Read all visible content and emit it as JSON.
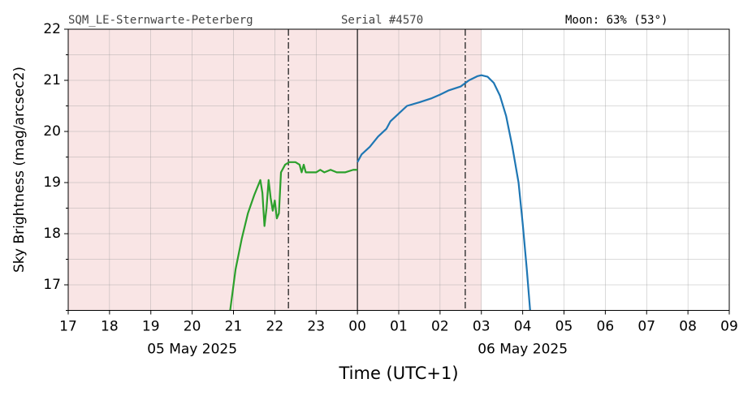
{
  "chart_data": {
    "type": "line",
    "header": {
      "site": "SQM_LE-Sternwarte-Peterberg",
      "serial": "Serial #4570",
      "moon": "Moon: 63% (53°)"
    },
    "ylabel": "Sky Brightness (mag/arcsec2)",
    "xlabel": "Time (UTC+1)",
    "xlim": [
      17,
      33
    ],
    "xticks": [
      17,
      18,
      19,
      20,
      21,
      22,
      23,
      {
        "value": 24,
        "label": "00"
      },
      {
        "value": 25,
        "label": "01"
      },
      {
        "value": 26,
        "label": "02"
      },
      {
        "value": 27,
        "label": "03"
      },
      {
        "value": 28,
        "label": "04"
      },
      {
        "value": 29,
        "label": "05"
      },
      {
        "value": 30,
        "label": "06"
      },
      {
        "value": 31,
        "label": "07"
      },
      {
        "value": 32,
        "label": "08"
      },
      {
        "value": 33,
        "label": "09"
      }
    ],
    "date_labels": [
      {
        "x": 20,
        "label": "05 May 2025"
      },
      {
        "x": 28,
        "label": "06 May 2025"
      }
    ],
    "ylim": [
      16.5,
      22
    ],
    "yticks": [
      17,
      18,
      19,
      20,
      21,
      22
    ],
    "y_minor_ticks": [
      16.5,
      17.5,
      18.5,
      19.5,
      20.5,
      21.5
    ],
    "grid": true,
    "shade": {
      "from": 17,
      "to": 27.0,
      "color": "#f9e5e5"
    },
    "vlines": [
      {
        "x": 22.33,
        "style": "dashdot"
      },
      {
        "x": 24,
        "style": "solid"
      },
      {
        "x": 26.61,
        "style": "dashdot"
      }
    ],
    "series": [
      {
        "color": "#2ca02c",
        "x": [
          20.92,
          21.05,
          21.2,
          21.35,
          21.5,
          21.6,
          21.65,
          21.7,
          21.75,
          21.8,
          21.85,
          21.9,
          21.95,
          22.0,
          22.05,
          22.1,
          22.15,
          22.25,
          22.35,
          22.5,
          22.6,
          22.65,
          22.7,
          22.75,
          23.0,
          23.1,
          23.2,
          23.35,
          23.5,
          23.7,
          23.9,
          24.0
        ],
        "values": [
          16.5,
          17.3,
          17.9,
          18.4,
          18.75,
          18.95,
          19.05,
          18.8,
          18.15,
          18.5,
          19.05,
          18.7,
          18.45,
          18.65,
          18.3,
          18.4,
          19.2,
          19.35,
          19.4,
          19.4,
          19.35,
          19.2,
          19.35,
          19.2,
          19.2,
          19.25,
          19.2,
          19.25,
          19.2,
          19.2,
          19.25,
          19.25
        ]
      },
      {
        "color": "#1f77b4",
        "x": [
          24.0,
          24.1,
          24.3,
          24.5,
          24.7,
          24.8,
          25.0,
          25.2,
          25.5,
          25.8,
          26.0,
          26.2,
          26.5,
          26.7,
          26.9,
          27.0,
          27.15,
          27.3,
          27.45,
          27.6,
          27.75,
          27.9,
          28.0,
          28.1,
          28.18
        ],
        "values": [
          19.4,
          19.55,
          19.7,
          19.9,
          20.05,
          20.2,
          20.35,
          20.5,
          20.57,
          20.65,
          20.72,
          20.8,
          20.88,
          21.0,
          21.08,
          21.1,
          21.07,
          20.95,
          20.7,
          20.3,
          19.7,
          19.0,
          18.2,
          17.3,
          16.5
        ]
      }
    ]
  }
}
